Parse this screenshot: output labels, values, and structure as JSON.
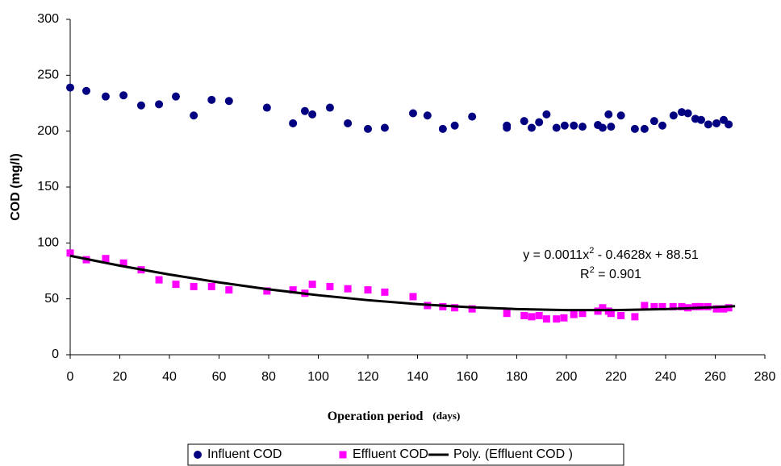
{
  "chart_data": {
    "type": "scatter",
    "ylabel": "COD (mg/l)",
    "xlabel": "Operation period",
    "xlabel_unit": "(days)",
    "xlim": [
      0,
      280
    ],
    "xticks": [
      0,
      20,
      40,
      60,
      80,
      100,
      120,
      140,
      160,
      180,
      200,
      220,
      240,
      260,
      280
    ],
    "ylim": [
      0,
      300
    ],
    "yticks": [
      0,
      50,
      100,
      150,
      200,
      250,
      300
    ],
    "series": [
      {
        "name": "Influent COD",
        "color": "#000080",
        "marker": "circle",
        "x": [
          0,
          6.5,
          14.3,
          21.5,
          28.6,
          35.8,
          42.6,
          49.8,
          57,
          64,
          79.3,
          89.8,
          94.6,
          97.6,
          104.7,
          111.9,
          120,
          126.8,
          138.2,
          144,
          150.2,
          155,
          162,
          176,
          176,
          183,
          186,
          189,
          192,
          196,
          199.3,
          203,
          206.5,
          212.7,
          214.6,
          217,
          218,
          222,
          227.6,
          231.5,
          235.4,
          238.7,
          243.2,
          246.5,
          249,
          252,
          254.3,
          257.2,
          260.5,
          263.4,
          265.4
        ],
        "values": [
          239,
          236,
          231,
          232,
          223,
          224,
          231,
          214,
          228,
          227,
          221,
          207,
          218,
          215,
          221,
          207,
          202,
          203,
          216,
          214,
          202,
          205,
          213,
          205,
          203,
          209,
          203,
          208,
          215,
          203,
          205,
          205,
          204,
          205.5,
          203,
          215,
          204,
          214,
          202,
          202,
          209,
          205,
          214,
          217,
          216,
          211,
          210,
          206,
          207,
          210,
          206
        ]
      },
      {
        "name": "Effluent COD",
        "color": "#ff00ff",
        "marker": "square",
        "x": [
          0,
          6.5,
          14.3,
          21.5,
          28.6,
          35.8,
          42.6,
          49.8,
          57,
          64,
          79.3,
          89.8,
          94.6,
          97.6,
          104.7,
          111.9,
          120,
          126.8,
          138.2,
          144,
          150.2,
          155,
          162,
          176,
          183,
          186,
          189,
          192,
          196,
          199,
          203,
          206.5,
          212.7,
          214.6,
          217,
          218,
          222,
          227.6,
          231.5,
          235.4,
          238.7,
          243,
          246.5,
          249,
          252,
          254,
          257,
          260.5,
          263.4,
          265.4
        ],
        "values": [
          91,
          85,
          86,
          82,
          76,
          67,
          63,
          61,
          61,
          58,
          57,
          58,
          55,
          63,
          61,
          59,
          58,
          56,
          52,
          44,
          43,
          42,
          41,
          37,
          35,
          34,
          35,
          32,
          32,
          33,
          36,
          37,
          39,
          42,
          39,
          37,
          35,
          34,
          44,
          43,
          43,
          43,
          43,
          42,
          43,
          43,
          43,
          41,
          41,
          42
        ]
      }
    ],
    "trendline": {
      "name": "Poly. (Effluent COD )",
      "color": "#000000",
      "x": [
        0,
        20,
        40,
        60,
        80,
        100,
        120,
        140,
        160,
        180,
        200,
        220,
        240,
        260,
        268
      ],
      "values": [
        88.51,
        79.69,
        71.76,
        64.7,
        58.53,
        53.23,
        48.81,
        45.28,
        42.62,
        40.85,
        39.95,
        39.93,
        40.8,
        42.54,
        43.49
      ]
    },
    "equation": [
      "y = 0.0011x",
      "2",
      " - 0.4628x + 88.51"
    ],
    "r_squared": [
      "R",
      "2",
      " = 0.901"
    ]
  }
}
